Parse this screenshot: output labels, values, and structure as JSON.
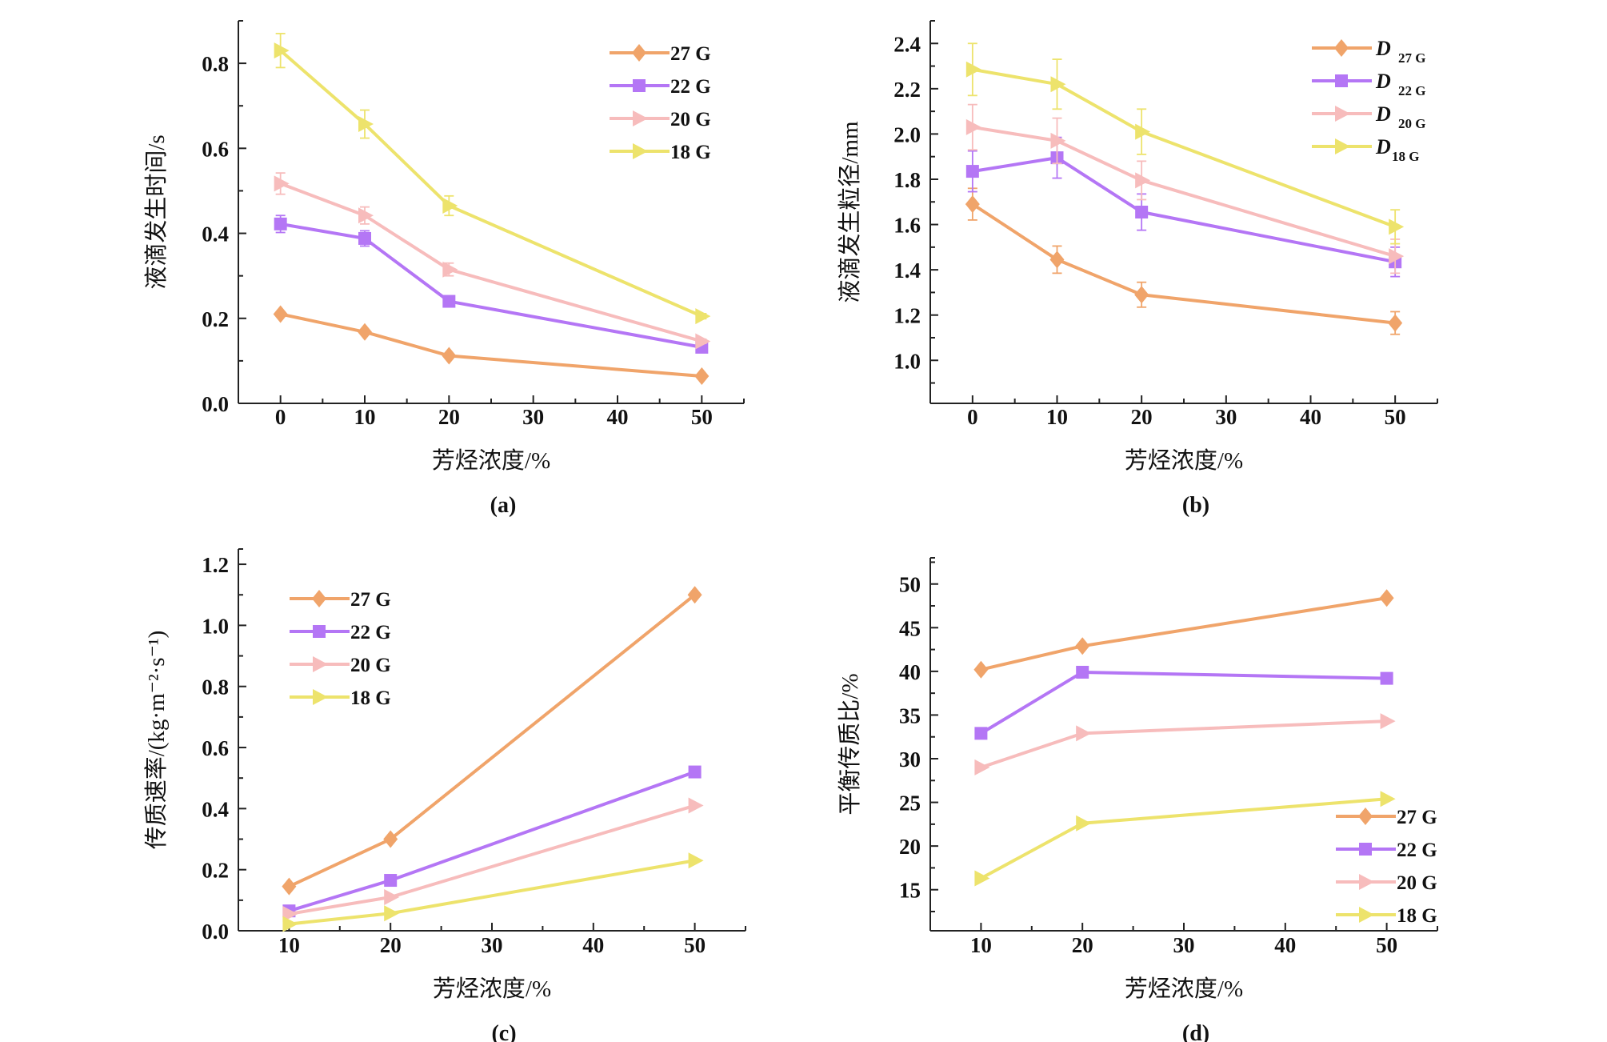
{
  "figure": {
    "series_colors": {
      "27 G": "#f0a46a",
      "22 G": "#b476f5",
      "20 G": "#f7bcbc",
      "18 G": "#ede36c"
    },
    "series_markers": {
      "27 G": "diamond",
      "22 G": "square",
      "20 G": "triangle-right",
      "18 G": "triangle-right"
    }
  },
  "chart_data": [
    {
      "id": "a",
      "panel_label": "(a)",
      "type": "line",
      "title": "",
      "xlabel": "芳烃浓度/%",
      "ylabel": "液滴发生时间/s",
      "x": [
        0,
        10,
        20,
        50
      ],
      "xlim": [
        -5,
        55
      ],
      "ylim": [
        0,
        0.9
      ],
      "xticks": [
        0,
        10,
        20,
        30,
        40,
        50
      ],
      "yticks": [
        0.0,
        0.2,
        0.4,
        0.6,
        0.8
      ],
      "ytick_labels": [
        "0.0",
        "0.2",
        "0.4",
        "0.6",
        "0.8"
      ],
      "grid": false,
      "legend_position": "top-right",
      "legend_style": "plain",
      "series": [
        {
          "name": "27 G",
          "values": [
            0.21,
            0.168,
            0.112,
            0.064
          ],
          "errors": [
            0.005,
            0.005,
            0.005,
            0.005
          ]
        },
        {
          "name": "22 G",
          "values": [
            0.422,
            0.388,
            0.24,
            0.132
          ],
          "errors": [
            0.02,
            0.018,
            0.006,
            0.006
          ]
        },
        {
          "name": "20 G",
          "values": [
            0.517,
            0.442,
            0.315,
            0.146
          ],
          "errors": [
            0.025,
            0.02,
            0.015,
            0.005
          ]
        },
        {
          "name": "18 G",
          "values": [
            0.83,
            0.657,
            0.465,
            0.205
          ],
          "errors": [
            0.04,
            0.033,
            0.023,
            0.006
          ]
        }
      ]
    },
    {
      "id": "b",
      "panel_label": "(b)",
      "type": "line",
      "title": "",
      "xlabel": "芳烃浓度/%",
      "ylabel": "液滴发生粒径/mm",
      "x": [
        0,
        10,
        20,
        50
      ],
      "xlim": [
        -5,
        55
      ],
      "ylim": [
        0.81,
        2.5
      ],
      "xticks": [
        0,
        10,
        20,
        30,
        40,
        50
      ],
      "yticks": [
        1.0,
        1.2,
        1.4,
        1.6,
        1.8,
        2.0,
        2.2,
        2.4
      ],
      "ytick_labels": [
        "1.0",
        "1.2",
        "1.4",
        "1.6",
        "1.8",
        "2.0",
        "2.2",
        "2.4"
      ],
      "grid": false,
      "legend_position": "top-right",
      "legend_style": "D-subscript",
      "legend_prefix": "D",
      "series": [
        {
          "name": "27 G",
          "values": [
            1.69,
            1.445,
            1.29,
            1.165
          ],
          "errors": [
            0.07,
            0.06,
            0.055,
            0.05
          ]
        },
        {
          "name": "22 G",
          "values": [
            1.835,
            1.895,
            1.655,
            1.435
          ],
          "errors": [
            0.09,
            0.09,
            0.08,
            0.065
          ]
        },
        {
          "name": "20 G",
          "values": [
            2.03,
            1.97,
            1.795,
            1.46
          ],
          "errors": [
            0.1,
            0.1,
            0.085,
            0.075
          ]
        },
        {
          "name": "18 G",
          "values": [
            2.285,
            2.22,
            2.01,
            1.59
          ],
          "errors": [
            0.115,
            0.11,
            0.1,
            0.075
          ]
        }
      ]
    },
    {
      "id": "c",
      "panel_label": "(c)",
      "type": "line",
      "title": "",
      "xlabel": "芳烃浓度/%",
      "ylabel": "传质速率/(kg·m⁻²·s⁻¹)",
      "x": [
        10,
        20,
        50
      ],
      "xlim": [
        5,
        55
      ],
      "ylim": [
        0,
        1.25
      ],
      "xticks": [
        10,
        20,
        30,
        40,
        50
      ],
      "yticks": [
        0.0,
        0.2,
        0.4,
        0.6,
        0.8,
        1.0,
        1.2
      ],
      "ytick_labels": [
        "0.0",
        "0.2",
        "0.4",
        "0.6",
        "0.8",
        "1.0",
        "1.2"
      ],
      "grid": false,
      "legend_position": "top-left",
      "legend_style": "plain",
      "series": [
        {
          "name": "27 G",
          "values": [
            0.145,
            0.3,
            1.1
          ]
        },
        {
          "name": "22 G",
          "values": [
            0.065,
            0.165,
            0.52
          ]
        },
        {
          "name": "20 G",
          "values": [
            0.055,
            0.11,
            0.41
          ]
        },
        {
          "name": "18 G",
          "values": [
            0.022,
            0.057,
            0.23
          ]
        }
      ]
    },
    {
      "id": "d",
      "panel_label": "(d)",
      "type": "line",
      "title": "",
      "xlabel": "芳烃浓度/%",
      "ylabel": "平衡传质比/%",
      "x": [
        10,
        20,
        50
      ],
      "xlim": [
        5,
        55
      ],
      "ylim": [
        10.3,
        53
      ],
      "xticks": [
        10,
        20,
        30,
        40,
        50
      ],
      "yticks": [
        15,
        20,
        25,
        30,
        35,
        40,
        45,
        50
      ],
      "ytick_labels": [
        "15",
        "20",
        "25",
        "30",
        "35",
        "40",
        "45",
        "50"
      ],
      "grid": false,
      "legend_position": "bottom-right",
      "legend_style": "plain",
      "series": [
        {
          "name": "27 G",
          "values": [
            40.2,
            42.9,
            48.4
          ]
        },
        {
          "name": "22 G",
          "values": [
            32.9,
            39.9,
            39.2
          ]
        },
        {
          "name": "20 G",
          "values": [
            29.0,
            32.9,
            34.3
          ]
        },
        {
          "name": "18 G",
          "values": [
            16.3,
            22.6,
            25.4
          ]
        }
      ]
    }
  ]
}
